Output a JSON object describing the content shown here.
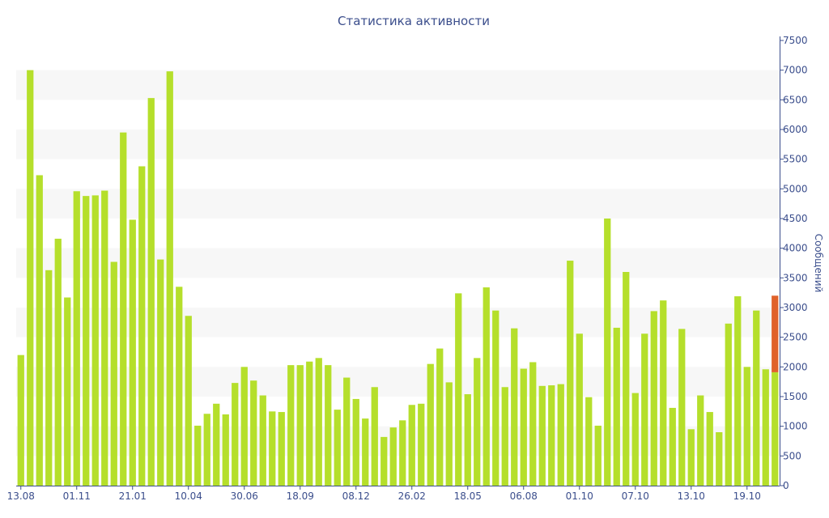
{
  "chart_data": {
    "type": "bar",
    "title": "Статистика активности",
    "xlabel": "",
    "ylabel": "Сообщений",
    "ylim": [
      0,
      7500
    ],
    "yticks": [
      0,
      500,
      1000,
      1500,
      2000,
      2500,
      3000,
      3500,
      4000,
      4500,
      5000,
      5500,
      6000,
      6500,
      7000,
      7500
    ],
    "y_axis_position": "right",
    "grid": "alternating horizontal bands",
    "x_ticks": [
      {
        "label": "13.08",
        "index": 0
      },
      {
        "label": "01.11",
        "index": 6
      },
      {
        "label": "21.01",
        "index": 12
      },
      {
        "label": "10.04",
        "index": 18
      },
      {
        "label": "30.06",
        "index": 24
      },
      {
        "label": "18.09",
        "index": 30
      },
      {
        "label": "08.12",
        "index": 36
      },
      {
        "label": "26.02",
        "index": 42
      },
      {
        "label": "18.05",
        "index": 48
      },
      {
        "label": "06.08",
        "index": 54
      },
      {
        "label": "01.10",
        "index": 60
      },
      {
        "label": "07.10",
        "index": 66
      },
      {
        "label": "13.10",
        "index": 72
      },
      {
        "label": "19.10",
        "index": 78
      }
    ],
    "colors": {
      "bar": "#b5df2b",
      "highlight": "#e0622a",
      "band": "#f7f7f7",
      "axis": "#3b4e8c"
    },
    "values": [
      2200,
      7000,
      5230,
      3630,
      4160,
      3170,
      4960,
      4880,
      4890,
      4970,
      3770,
      5950,
      4480,
      5380,
      6530,
      3810,
      6980,
      3350,
      2860,
      1010,
      1210,
      1380,
      1200,
      1730,
      2000,
      1770,
      1520,
      1250,
      1240,
      2030,
      2030,
      2090,
      2150,
      2030,
      1280,
      1820,
      1460,
      1130,
      1660,
      820,
      980,
      1100,
      1360,
      1380,
      2050,
      2310,
      1740,
      3240,
      1540,
      2150,
      3340,
      2950,
      1660,
      2650,
      1970,
      2080,
      1680,
      1690,
      1710,
      3790,
      2560,
      1490,
      1010,
      4500,
      2660,
      3600,
      1560,
      2560,
      2940,
      3120,
      1310,
      2640,
      950,
      1520,
      1240,
      900,
      2730,
      3190,
      2000,
      2950,
      1960,
      1910
    ],
    "highlight": {
      "index": 81,
      "base": 1910,
      "top": 3200
    }
  }
}
